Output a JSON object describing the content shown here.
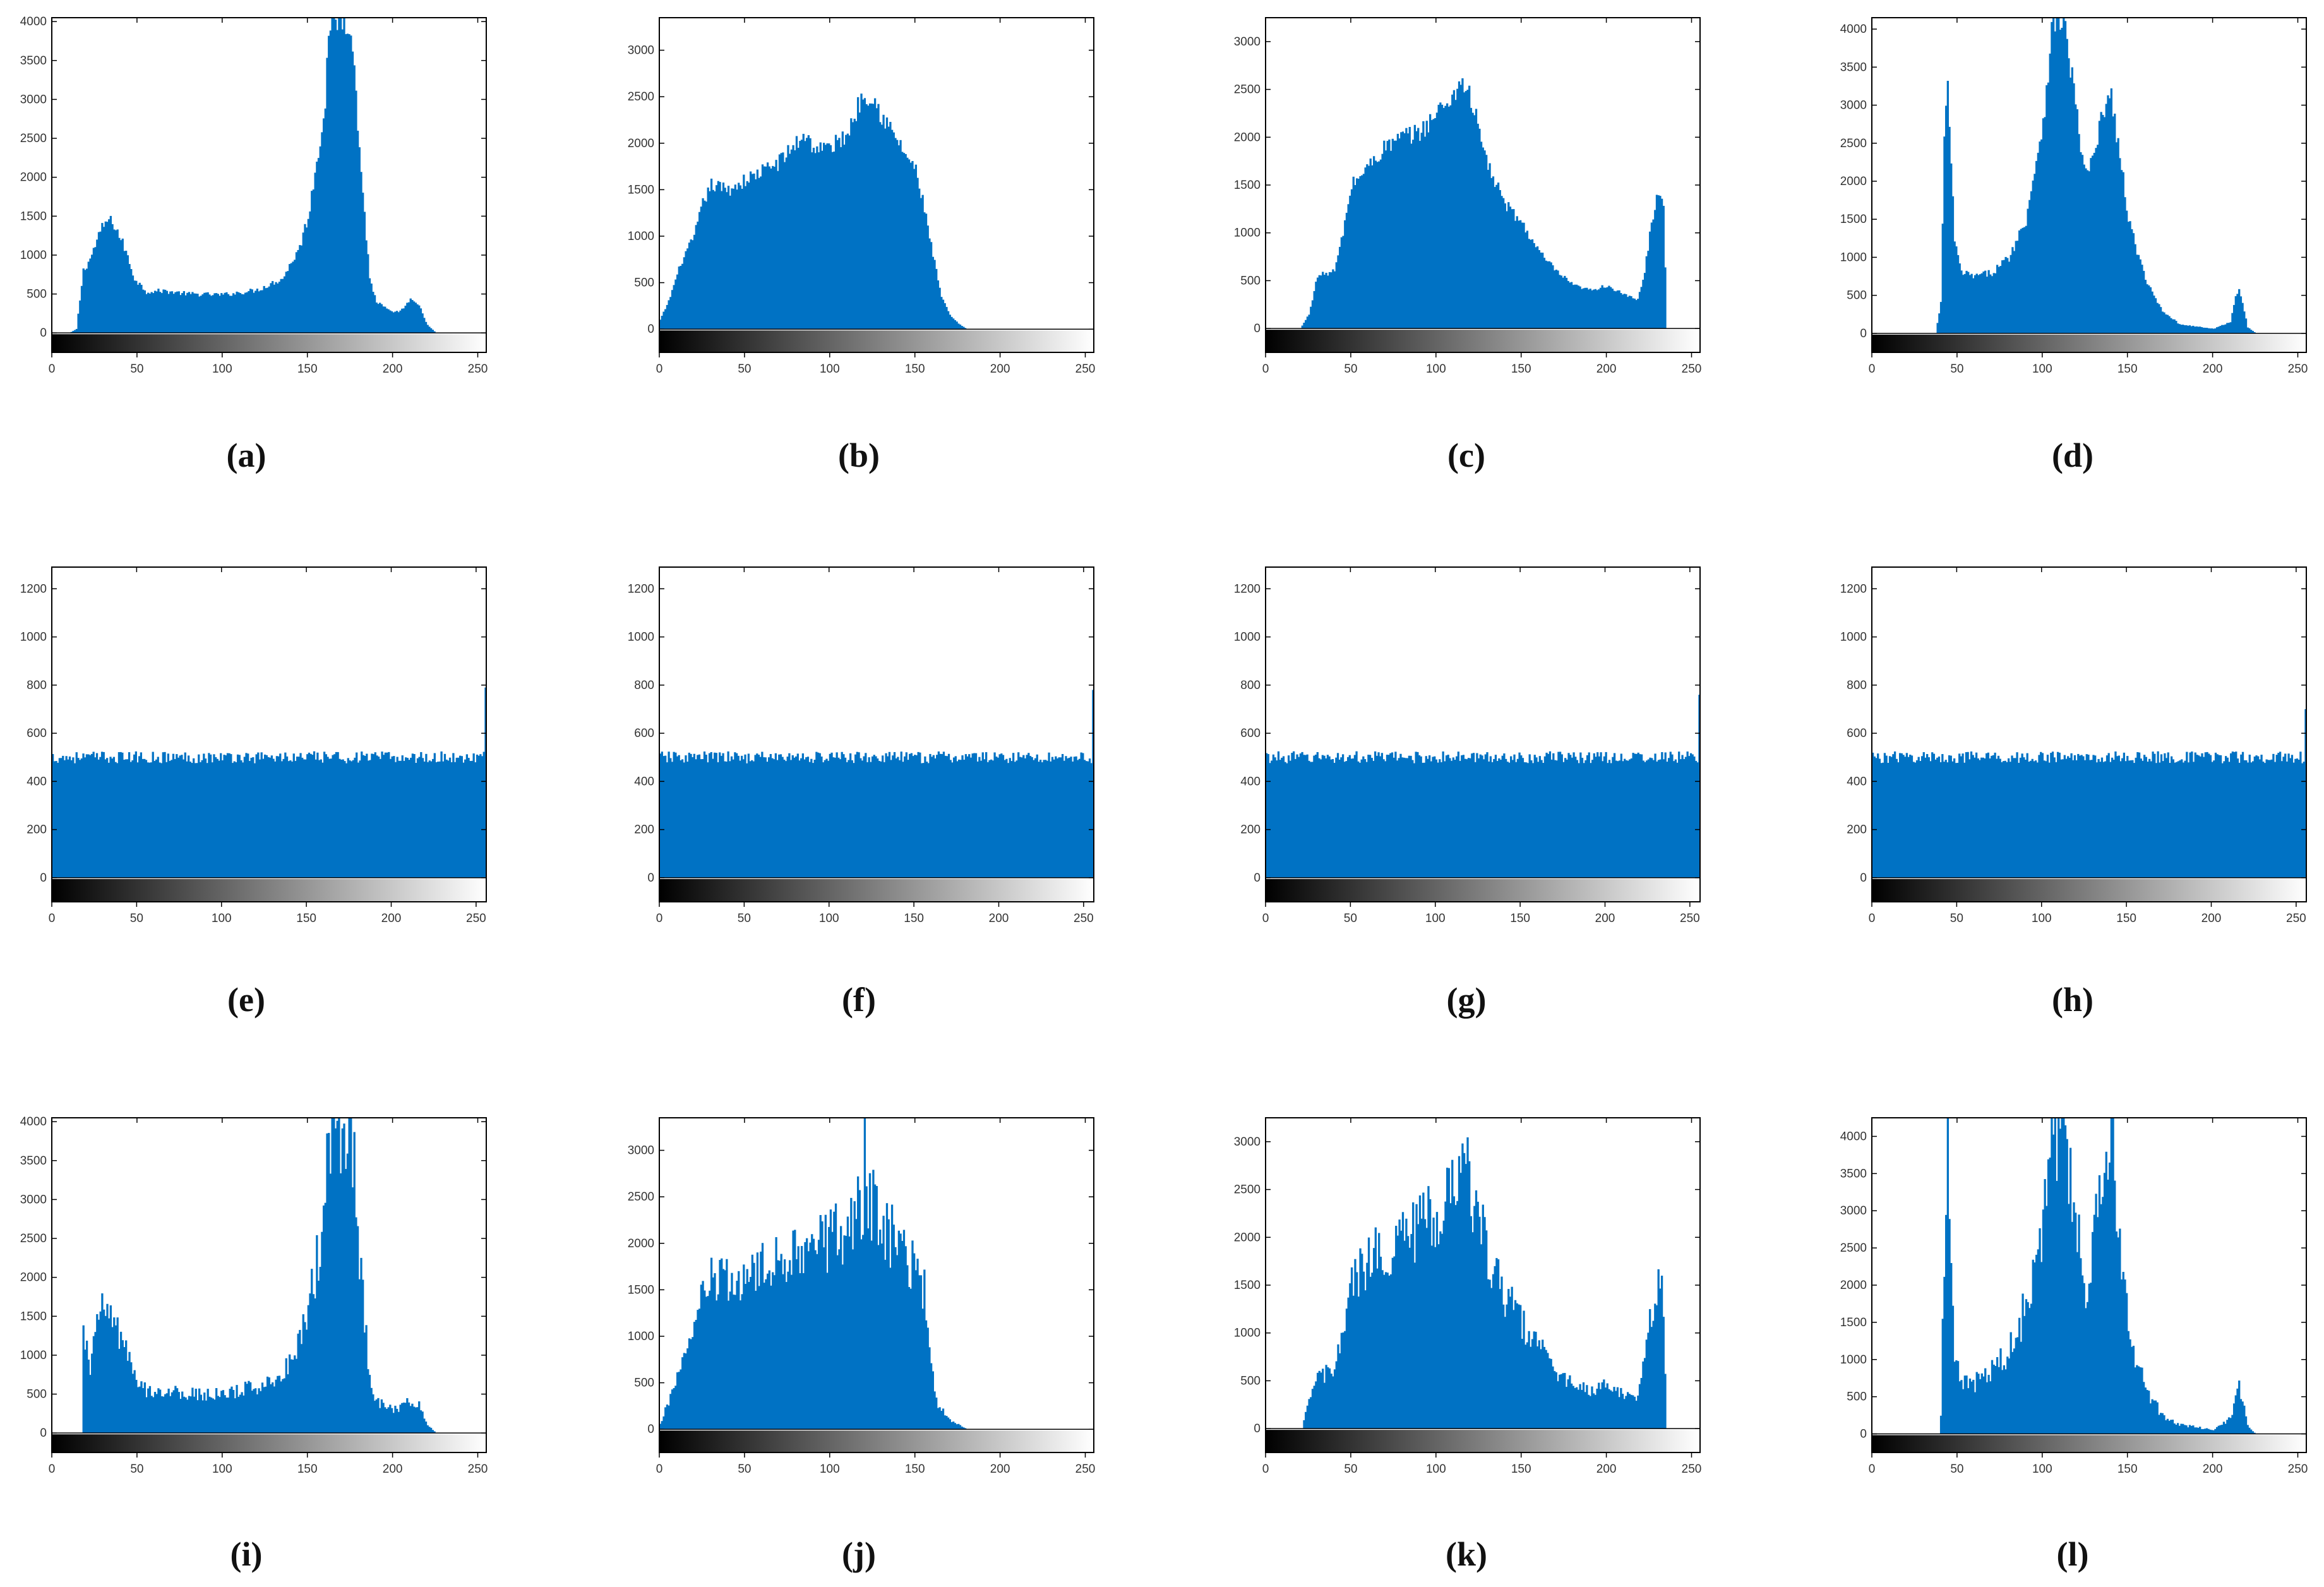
{
  "figure": {
    "bar_color": "#0072c4",
    "axis_color": "#000000",
    "layout": "3 rows x 4 columns of histograms with grayscale colorbar"
  },
  "chart_data": [
    {
      "id": "a",
      "caption": "(a)",
      "type": "bar",
      "xlim": [
        0,
        255
      ],
      "ylim": [
        -250,
        4050
      ],
      "xticks": [
        0,
        50,
        100,
        150,
        200,
        250
      ],
      "yticks": [
        0,
        500,
        1000,
        1500,
        2000,
        2500,
        3000,
        3500,
        4000
      ],
      "profile": [
        [
          0,
          0
        ],
        [
          10,
          0
        ],
        [
          14,
          50
        ],
        [
          18,
          800
        ],
        [
          22,
          950
        ],
        [
          28,
          1300
        ],
        [
          32,
          1450
        ],
        [
          36,
          1400
        ],
        [
          42,
          1100
        ],
        [
          48,
          700
        ],
        [
          55,
          530
        ],
        [
          65,
          540
        ],
        [
          80,
          500
        ],
        [
          100,
          490
        ],
        [
          120,
          550
        ],
        [
          135,
          700
        ],
        [
          145,
          1100
        ],
        [
          150,
          1500
        ],
        [
          155,
          2200
        ],
        [
          160,
          3000
        ],
        [
          163,
          4050
        ],
        [
          175,
          4050
        ],
        [
          178,
          3000
        ],
        [
          182,
          1800
        ],
        [
          186,
          700
        ],
        [
          190,
          400
        ],
        [
          200,
          250
        ],
        [
          205,
          300
        ],
        [
          210,
          420
        ],
        [
          215,
          350
        ],
        [
          220,
          100
        ],
        [
          225,
          0
        ],
        [
          255,
          0
        ]
      ],
      "noise": 0.06,
      "cap": 4050
    },
    {
      "id": "b",
      "caption": "(b)",
      "type": "bar",
      "xlim": [
        0,
        255
      ],
      "ylim": [
        -250,
        3350
      ],
      "xticks": [
        0,
        50,
        100,
        150,
        200,
        250
      ],
      "yticks": [
        0,
        500,
        1000,
        1500,
        2000,
        2500,
        3000
      ],
      "profile": [
        [
          0,
          100
        ],
        [
          5,
          300
        ],
        [
          12,
          700
        ],
        [
          20,
          1000
        ],
        [
          25,
          1350
        ],
        [
          30,
          1550
        ],
        [
          40,
          1500
        ],
        [
          50,
          1600
        ],
        [
          60,
          1700
        ],
        [
          70,
          1800
        ],
        [
          80,
          2000
        ],
        [
          85,
          2100
        ],
        [
          90,
          1950
        ],
        [
          100,
          1950
        ],
        [
          110,
          2100
        ],
        [
          115,
          2350
        ],
        [
          120,
          2550
        ],
        [
          125,
          2500
        ],
        [
          130,
          2300
        ],
        [
          140,
          2000
        ],
        [
          150,
          1700
        ],
        [
          155,
          1300
        ],
        [
          160,
          800
        ],
        [
          165,
          350
        ],
        [
          170,
          150
        ],
        [
          175,
          60
        ],
        [
          180,
          0
        ],
        [
          255,
          0
        ]
      ],
      "noise": 0.05,
      "cap": 3350
    },
    {
      "id": "c",
      "caption": "(c)",
      "type": "bar",
      "xlim": [
        0,
        255
      ],
      "ylim": [
        -250,
        3250
      ],
      "xticks": [
        0,
        50,
        100,
        150,
        200,
        250
      ],
      "yticks": [
        0,
        500,
        1000,
        1500,
        2000,
        2500,
        3000
      ],
      "profile": [
        [
          0,
          0
        ],
        [
          20,
          0
        ],
        [
          25,
          150
        ],
        [
          30,
          550
        ],
        [
          40,
          600
        ],
        [
          45,
          1000
        ],
        [
          50,
          1500
        ],
        [
          60,
          1700
        ],
        [
          70,
          1900
        ],
        [
          80,
          2000
        ],
        [
          90,
          2050
        ],
        [
          100,
          2250
        ],
        [
          110,
          2450
        ],
        [
          115,
          2600
        ],
        [
          120,
          2400
        ],
        [
          130,
          1700
        ],
        [
          140,
          1300
        ],
        [
          150,
          1100
        ],
        [
          160,
          800
        ],
        [
          170,
          600
        ],
        [
          180,
          450
        ],
        [
          190,
          400
        ],
        [
          200,
          450
        ],
        [
          210,
          350
        ],
        [
          218,
          300
        ],
        [
          222,
          600
        ],
        [
          226,
          1100
        ],
        [
          230,
          1450
        ],
        [
          233,
          1300
        ],
        [
          235,
          0
        ],
        [
          255,
          0
        ]
      ],
      "noise": 0.05,
      "cap": 3250
    },
    {
      "id": "d",
      "caption": "(d)",
      "type": "bar",
      "xlim": [
        0,
        255
      ],
      "ylim": [
        -250,
        4150
      ],
      "xticks": [
        0,
        50,
        100,
        150,
        200,
        250
      ],
      "yticks": [
        0,
        500,
        1000,
        1500,
        2000,
        2500,
        3000,
        3500,
        4000
      ],
      "profile": [
        [
          0,
          0
        ],
        [
          37,
          0
        ],
        [
          40,
          400
        ],
        [
          42,
          2500
        ],
        [
          44,
          3200
        ],
        [
          46,
          2300
        ],
        [
          48,
          1200
        ],
        [
          52,
          800
        ],
        [
          60,
          750
        ],
        [
          70,
          800
        ],
        [
          80,
          1000
        ],
        [
          90,
          1500
        ],
        [
          100,
          2800
        ],
        [
          106,
          4150
        ],
        [
          112,
          4150
        ],
        [
          118,
          3200
        ],
        [
          124,
          2100
        ],
        [
          130,
          2300
        ],
        [
          136,
          3000
        ],
        [
          140,
          3100
        ],
        [
          144,
          2500
        ],
        [
          150,
          1500
        ],
        [
          160,
          700
        ],
        [
          170,
          300
        ],
        [
          180,
          120
        ],
        [
          200,
          60
        ],
        [
          210,
          150
        ],
        [
          213,
          500
        ],
        [
          215,
          600
        ],
        [
          217,
          400
        ],
        [
          220,
          80
        ],
        [
          225,
          0
        ],
        [
          255,
          0
        ]
      ],
      "noise": 0.06,
      "cap": 4150
    },
    {
      "id": "e",
      "caption": "(e)",
      "type": "bar",
      "xlim": [
        0,
        256
      ],
      "ylim": [
        -100,
        1290
      ],
      "xticks": [
        0,
        50,
        100,
        150,
        200,
        250
      ],
      "yticks": [
        0,
        200,
        400,
        600,
        800,
        1000,
        1200
      ],
      "profile": [
        [
          0,
          500
        ],
        [
          255,
          500
        ]
      ],
      "noise": 0.05,
      "cap": 1290,
      "last_bar": 790
    },
    {
      "id": "f",
      "caption": "(f)",
      "type": "bar",
      "xlim": [
        0,
        256
      ],
      "ylim": [
        -100,
        1290
      ],
      "xticks": [
        0,
        50,
        100,
        150,
        200,
        250
      ],
      "yticks": [
        0,
        200,
        400,
        600,
        800,
        1000,
        1200
      ],
      "profile": [
        [
          0,
          500
        ],
        [
          255,
          500
        ]
      ],
      "noise": 0.05,
      "cap": 1290,
      "last_bar": 780
    },
    {
      "id": "g",
      "caption": "(g)",
      "type": "bar",
      "xlim": [
        0,
        256
      ],
      "ylim": [
        -100,
        1290
      ],
      "xticks": [
        0,
        50,
        100,
        150,
        200,
        250
      ],
      "yticks": [
        0,
        200,
        400,
        600,
        800,
        1000,
        1200
      ],
      "profile": [
        [
          0,
          500
        ],
        [
          255,
          500
        ]
      ],
      "noise": 0.05,
      "cap": 1290,
      "last_bar": 760
    },
    {
      "id": "h",
      "caption": "(h)",
      "type": "bar",
      "xlim": [
        0,
        256
      ],
      "ylim": [
        -100,
        1290
      ],
      "xticks": [
        0,
        50,
        100,
        150,
        200,
        250
      ],
      "yticks": [
        0,
        200,
        400,
        600,
        800,
        1000,
        1200
      ],
      "profile": [
        [
          0,
          500
        ],
        [
          255,
          500
        ]
      ],
      "noise": 0.05,
      "cap": 1290,
      "last_bar": 700
    },
    {
      "id": "i",
      "caption": "(i)",
      "type": "bar",
      "xlim": [
        0,
        255
      ],
      "ylim": [
        -250,
        4050
      ],
      "xticks": [
        0,
        50,
        100,
        150,
        200,
        250
      ],
      "yticks": [
        0,
        500,
        1000,
        1500,
        2000,
        2500,
        3000,
        3500,
        4000
      ],
      "profile": [
        [
          0,
          0
        ],
        [
          17,
          0
        ],
        [
          18,
          1200
        ],
        [
          22,
          900
        ],
        [
          28,
          1500
        ],
        [
          32,
          1650
        ],
        [
          36,
          1400
        ],
        [
          42,
          1100
        ],
        [
          48,
          700
        ],
        [
          55,
          550
        ],
        [
          65,
          540
        ],
        [
          80,
          500
        ],
        [
          100,
          490
        ],
        [
          120,
          600
        ],
        [
          135,
          750
        ],
        [
          145,
          1200
        ],
        [
          150,
          1600
        ],
        [
          155,
          2200
        ],
        [
          160,
          3000
        ],
        [
          163,
          4050
        ],
        [
          175,
          4050
        ],
        [
          178,
          3000
        ],
        [
          182,
          1800
        ],
        [
          186,
          700
        ],
        [
          190,
          400
        ],
        [
          200,
          300
        ],
        [
          205,
          350
        ],
        [
          210,
          420
        ],
        [
          215,
          350
        ],
        [
          220,
          100
        ],
        [
          225,
          0
        ],
        [
          255,
          0
        ]
      ],
      "noise": 0.18,
      "cap": 4050
    },
    {
      "id": "j",
      "caption": "(j)",
      "type": "bar",
      "xlim": [
        0,
        255
      ],
      "ylim": [
        -250,
        3350
      ],
      "xticks": [
        0,
        50,
        100,
        150,
        200,
        250
      ],
      "yticks": [
        0,
        500,
        1000,
        1500,
        2000,
        2500,
        3000
      ],
      "profile": [
        [
          0,
          50
        ],
        [
          5,
          300
        ],
        [
          12,
          700
        ],
        [
          20,
          1000
        ],
        [
          25,
          1450
        ],
        [
          30,
          1600
        ],
        [
          40,
          1550
        ],
        [
          50,
          1650
        ],
        [
          60,
          1700
        ],
        [
          70,
          1800
        ],
        [
          80,
          2000
        ],
        [
          90,
          2000
        ],
        [
          100,
          2050
        ],
        [
          110,
          2150
        ],
        [
          115,
          2300
        ],
        [
          120,
          2450
        ],
        [
          125,
          2400
        ],
        [
          130,
          2200
        ],
        [
          140,
          2000
        ],
        [
          150,
          1700
        ],
        [
          155,
          1500
        ],
        [
          158,
          800
        ],
        [
          162,
          300
        ],
        [
          170,
          100
        ],
        [
          180,
          0
        ],
        [
          255,
          0
        ]
      ],
      "noise": 0.18,
      "cap": 3350,
      "spikes": [
        [
          120,
          3350
        ]
      ]
    },
    {
      "id": "k",
      "caption": "(k)",
      "type": "bar",
      "xlim": [
        0,
        255
      ],
      "ylim": [
        -250,
        3250
      ],
      "xticks": [
        0,
        50,
        100,
        150,
        200,
        250
      ],
      "yticks": [
        0,
        500,
        1000,
        1500,
        2000,
        2500,
        3000
      ],
      "profile": [
        [
          0,
          0
        ],
        [
          21,
          0
        ],
        [
          25,
          300
        ],
        [
          30,
          550
        ],
        [
          40,
          600
        ],
        [
          45,
          1000
        ],
        [
          50,
          1500
        ],
        [
          60,
          1750
        ],
        [
          70,
          1900
        ],
        [
          80,
          2000
        ],
        [
          90,
          2100
        ],
        [
          100,
          2250
        ],
        [
          110,
          2550
        ],
        [
          115,
          2800
        ],
        [
          120,
          2500
        ],
        [
          130,
          1800
        ],
        [
          140,
          1400
        ],
        [
          150,
          1100
        ],
        [
          160,
          850
        ],
        [
          170,
          600
        ],
        [
          180,
          450
        ],
        [
          190,
          400
        ],
        [
          200,
          450
        ],
        [
          210,
          350
        ],
        [
          218,
          300
        ],
        [
          222,
          700
        ],
        [
          226,
          1200
        ],
        [
          230,
          1550
        ],
        [
          233,
          1300
        ],
        [
          235,
          0
        ],
        [
          255,
          0
        ]
      ],
      "noise": 0.17,
      "cap": 3250
    },
    {
      "id": "l",
      "caption": "(l)",
      "type": "bar",
      "xlim": [
        0,
        255
      ],
      "ylim": [
        -250,
        4250
      ],
      "xticks": [
        0,
        50,
        100,
        150,
        200,
        250
      ],
      "yticks": [
        0,
        500,
        1000,
        1500,
        2000,
        2500,
        3000,
        3500,
        4000
      ],
      "profile": [
        [
          0,
          0
        ],
        [
          39,
          0
        ],
        [
          40,
          300
        ],
        [
          42,
          2500
        ],
        [
          44,
          4250
        ],
        [
          46,
          2500
        ],
        [
          48,
          1200
        ],
        [
          52,
          650
        ],
        [
          60,
          700
        ],
        [
          70,
          850
        ],
        [
          80,
          1100
        ],
        [
          90,
          1700
        ],
        [
          100,
          3000
        ],
        [
          106,
          4250
        ],
        [
          112,
          4250
        ],
        [
          118,
          3400
        ],
        [
          124,
          1900
        ],
        [
          128,
          2300
        ],
        [
          134,
          3200
        ],
        [
          140,
          3900
        ],
        [
          144,
          2800
        ],
        [
          150,
          1400
        ],
        [
          160,
          600
        ],
        [
          170,
          250
        ],
        [
          180,
          120
        ],
        [
          200,
          60
        ],
        [
          210,
          200
        ],
        [
          213,
          550
        ],
        [
          215,
          650
        ],
        [
          217,
          450
        ],
        [
          220,
          100
        ],
        [
          225,
          0
        ],
        [
          255,
          0
        ]
      ],
      "noise": 0.2,
      "cap": 4250
    }
  ]
}
